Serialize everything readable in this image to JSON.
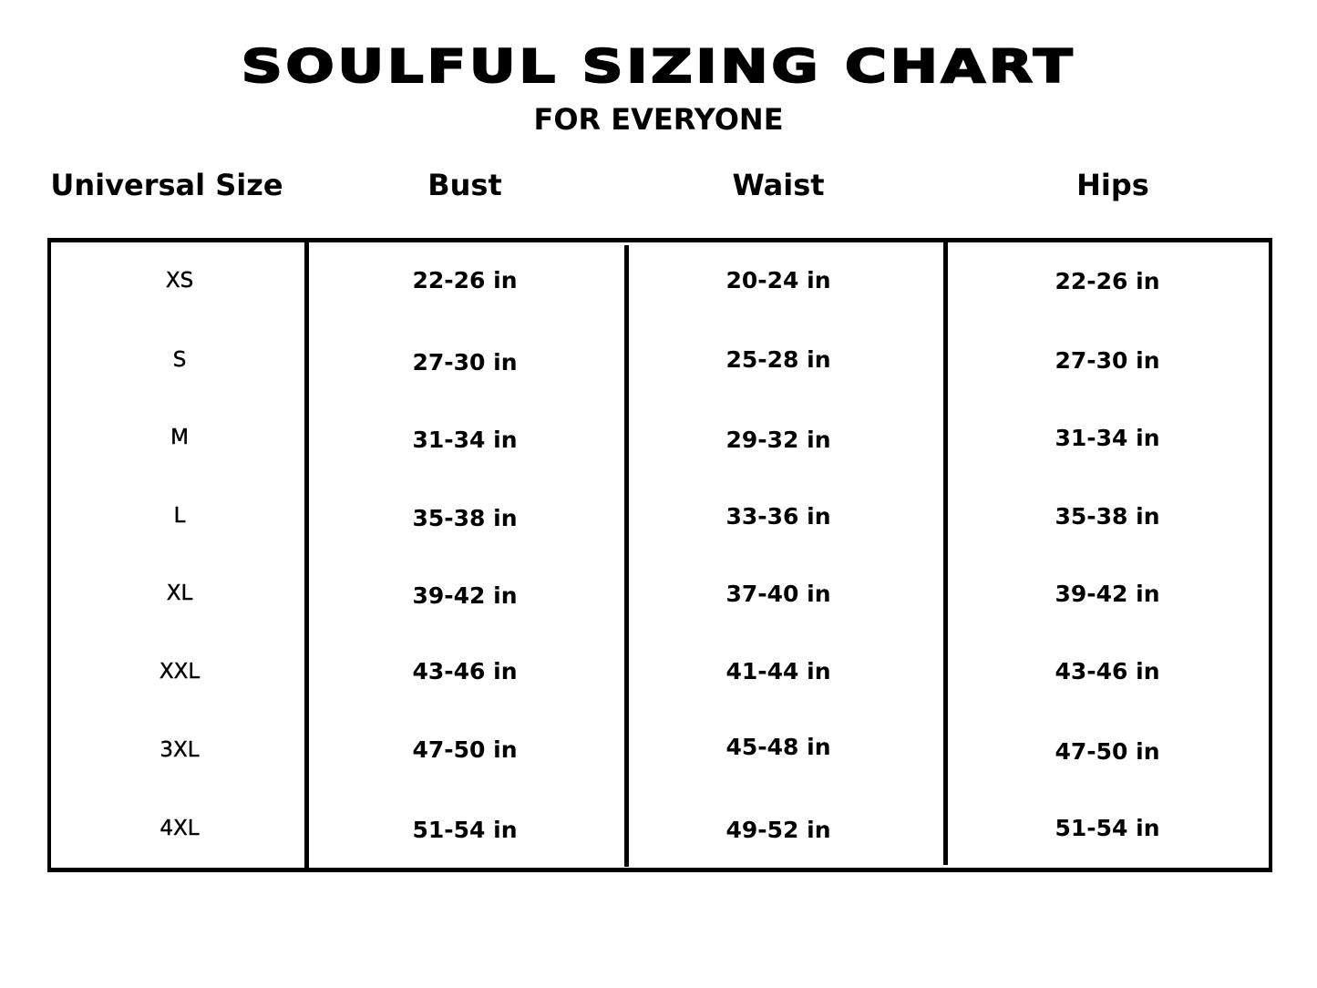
{
  "title": "SOULFUL SIZING CHART",
  "subtitle": "FOR EVERYONE",
  "headers": [
    "Universal Size",
    "Bust",
    "Waist",
    "Hips"
  ],
  "rows": [
    [
      "XS",
      "22-26 in",
      "20-24 in",
      "22-26 in"
    ],
    [
      "S",
      "27-30 in",
      "25-28 in",
      "27-30 in"
    ],
    [
      "M",
      "31-34 in",
      "29-32 in",
      "31-34 in"
    ],
    [
      "L",
      "35-38 in",
      "33-36 in",
      "35-38 in"
    ],
    [
      "XL",
      "39-42 in",
      "37-40 in",
      "39-42 in"
    ],
    [
      "XXL",
      "43-46 in",
      "41-44 in",
      "43-46 in"
    ],
    [
      "3XL",
      "47-50 in",
      "45-48 in",
      "47-50 in"
    ],
    [
      "4XL",
      "51-54 in",
      "49-52 in",
      "51-54 in"
    ]
  ]
}
